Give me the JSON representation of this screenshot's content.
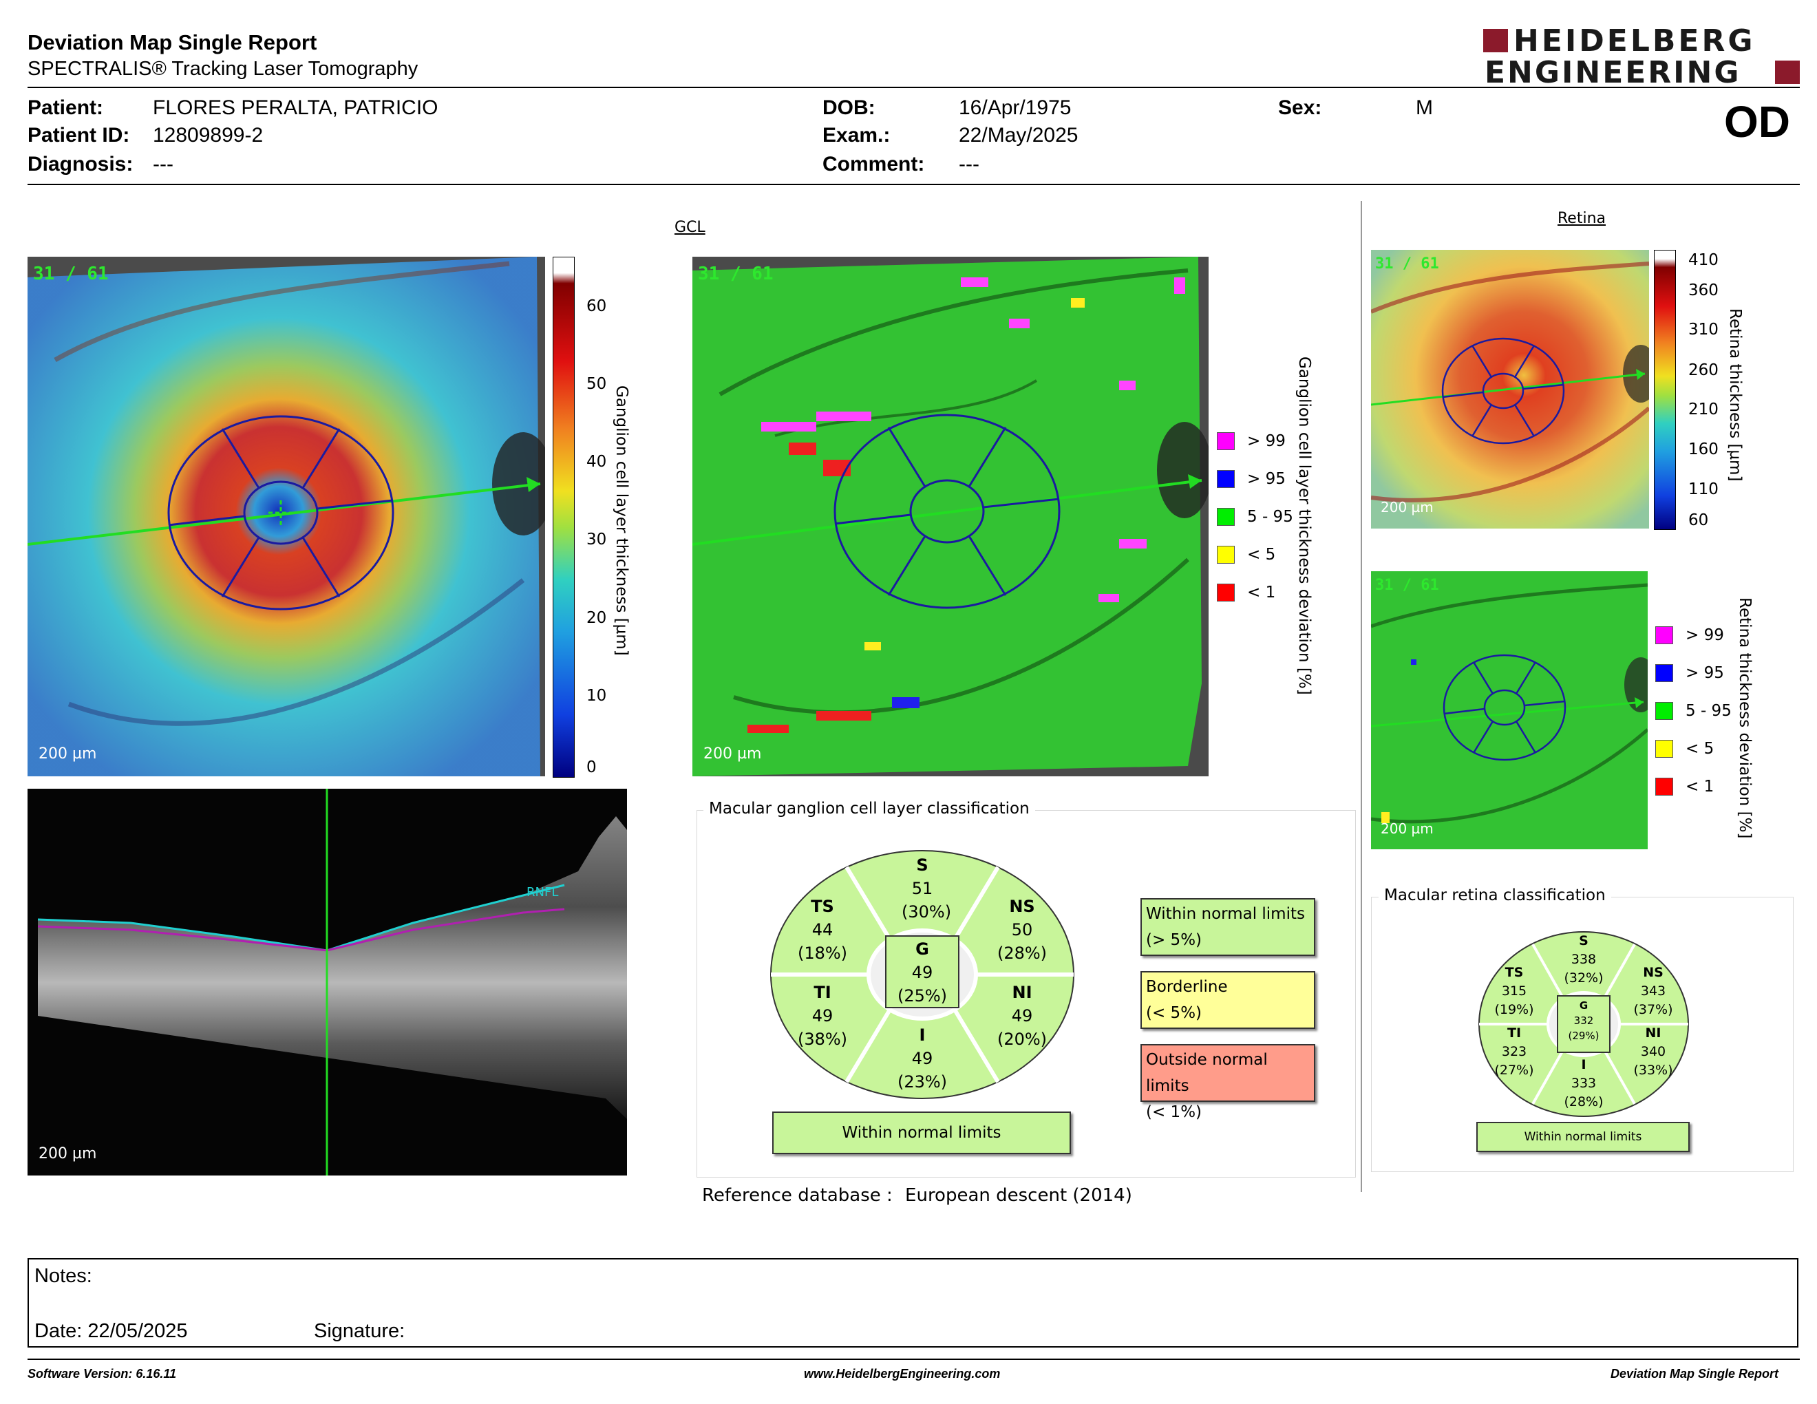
{
  "report": {
    "title": "Deviation Map Single Report",
    "subtitle": "SPECTRALIS® Tracking Laser Tomography",
    "brand_line1": "HEIDELBERG",
    "brand_line2": "ENGINEERING",
    "eye": "OD"
  },
  "patient": {
    "patient_label": "Patient:",
    "patient_value": "FLORES PERALTA, PATRICIO",
    "id_label": "Patient ID:",
    "id_value": "12809899-2",
    "diagnosis_label": "Diagnosis:",
    "diagnosis_value": "---",
    "dob_label": "DOB:",
    "dob_value": "16/Apr/1975",
    "exam_label": "Exam.:",
    "exam_value": "22/May/2025",
    "comment_label": "Comment:",
    "comment_value": "---",
    "sex_label": "Sex:",
    "sex_value": "M"
  },
  "gcl": {
    "section_title": "GCL",
    "scan_fraction": "31 / 61",
    "scale_bar": "200 µm",
    "colorbar_ticks": [
      "60",
      "50",
      "40",
      "30",
      "20",
      "10",
      "0"
    ],
    "colorbar_title": "Ganglion cell layer thickness [µm]",
    "deviation_title": "Ganglion cell layer thickness deviation [%]",
    "legend": [
      {
        "label": "> 99",
        "color": "#ff00ff"
      },
      {
        "label": "> 95",
        "color": "#0000ff"
      },
      {
        "label": "5 - 95",
        "color": "#00ee00"
      },
      {
        "label": "< 5",
        "color": "#ffff00"
      },
      {
        "label": "< 1",
        "color": "#ff0000"
      }
    ],
    "bscan_scale": "200 µm",
    "bscan_layer": "RNFL"
  },
  "retina": {
    "section_title": "Retina",
    "scan_fraction": "31 / 61",
    "scale_bar": "200 µm",
    "colorbar_ticks": [
      "410",
      "360",
      "310",
      "260",
      "210",
      "160",
      "110",
      "60"
    ],
    "colorbar_title": "Retina thickness [µm]",
    "deviation_title": "Retina thickness deviation [%]",
    "legend": [
      {
        "label": "> 99",
        "color": "#ff00ff"
      },
      {
        "label": "> 95",
        "color": "#0000ff"
      },
      {
        "label": "5 - 95",
        "color": "#00ee00"
      },
      {
        "label": "< 5",
        "color": "#ffff00"
      },
      {
        "label": "< 1",
        "color": "#ff0000"
      }
    ]
  },
  "gcl_classification": {
    "panel_title": "Macular ganglion cell layer classification",
    "sectors": {
      "S": {
        "name": "S",
        "value": "51",
        "pct": "(30%)"
      },
      "TS": {
        "name": "TS",
        "value": "44",
        "pct": "(18%)"
      },
      "NS": {
        "name": "NS",
        "value": "50",
        "pct": "(28%)"
      },
      "G": {
        "name": "G",
        "value": "49",
        "pct": "(25%)"
      },
      "TI": {
        "name": "TI",
        "value": "49",
        "pct": "(38%)"
      },
      "NI": {
        "name": "NI",
        "value": "49",
        "pct": "(20%)"
      },
      "I": {
        "name": "I",
        "value": "49",
        "pct": "(23%)"
      }
    },
    "result": "Within normal limits",
    "key": {
      "wnl_1": "Within normal limits",
      "wnl_2": "(> 5%)",
      "bl_1": "Borderline",
      "bl_2": "(< 5%)",
      "onl_1": "Outside normal limits",
      "onl_2": "(< 1%)"
    },
    "colors": {
      "wnl": "#c8f59a",
      "borderline": "#ffff99",
      "outside": "#ff9c8a"
    }
  },
  "retina_classification": {
    "panel_title": "Macular retina classification",
    "sectors": {
      "S": {
        "name": "S",
        "value": "338",
        "pct": "(32%)"
      },
      "TS": {
        "name": "TS",
        "value": "315",
        "pct": "(19%)"
      },
      "NS": {
        "name": "NS",
        "value": "343",
        "pct": "(37%)"
      },
      "G": {
        "name": "G",
        "value": "332",
        "pct": "(29%)"
      },
      "TI": {
        "name": "TI",
        "value": "323",
        "pct": "(27%)"
      },
      "NI": {
        "name": "NI",
        "value": "340",
        "pct": "(33%)"
      },
      "I": {
        "name": "I",
        "value": "333",
        "pct": "(28%)"
      }
    },
    "result": "Within normal limits"
  },
  "reference": {
    "label": "Reference database :",
    "value": "European descent (2014)"
  },
  "notes": {
    "notes_label": "Notes:",
    "date_label": "Date: 22/05/2025",
    "signature_label": "Signature:"
  },
  "footer": {
    "software": "Software Version: 6.16.11",
    "website": "www.HeidelbergEngineering.com",
    "report_name": "Deviation Map Single Report"
  }
}
